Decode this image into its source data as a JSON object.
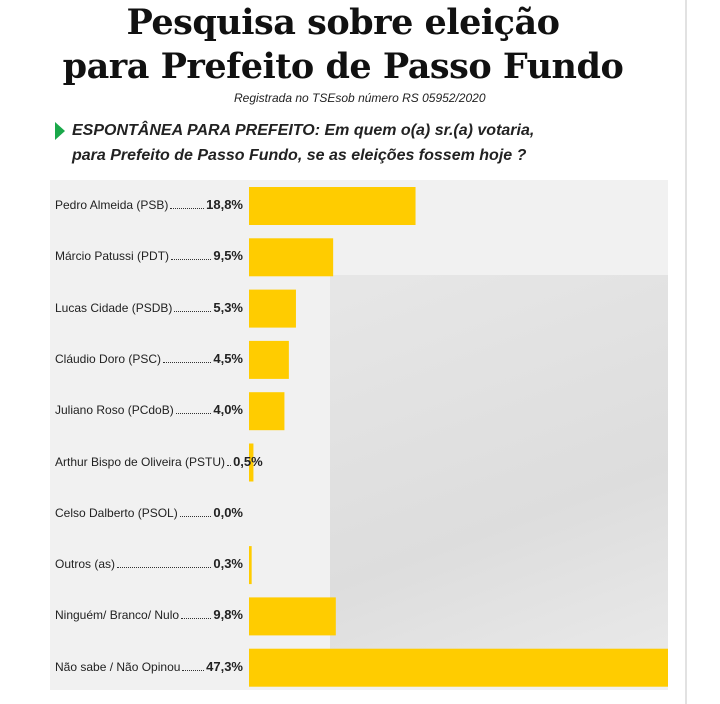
{
  "chart_data": {
    "type": "bar",
    "orientation": "horizontal",
    "title": [
      "Pesquisa sobre eleição",
      "para Prefeito de Passo Fundo"
    ],
    "subtitle": "Registrada no TSEsob número RS 05952/2020",
    "question": [
      "ESPONTÂNEA PARA PREFEITO: Em quem o(a) sr.(a) votaria,",
      "para Prefeito de Passo Fundo, se as eleições fossem hoje ?"
    ],
    "categories": [
      "Pedro Almeida (PSB)",
      "Márcio Patussi (PDT)",
      "Lucas Cidade (PSDB)",
      "Cláudio Doro (PSC)",
      "Juliano Roso (PCdoB)",
      "Arthur Bispo de Oliveira (PSTU)",
      "Celso Dalberto (PSOL)",
      "Outros (as)",
      "Ninguém/ Branco/ Nulo",
      "Não sabe / Não Opinou"
    ],
    "values": [
      18.8,
      9.5,
      5.3,
      4.5,
      4.0,
      0.5,
      0.0,
      0.3,
      9.8,
      47.3
    ],
    "value_labels": [
      "18,8%",
      "9,5%",
      "5,3%",
      "4,5%",
      "4,0%",
      "0,5%",
      "0,0%",
      "0,3%",
      "9,8%",
      "47,3%"
    ],
    "color": "#ffcc00"
  }
}
